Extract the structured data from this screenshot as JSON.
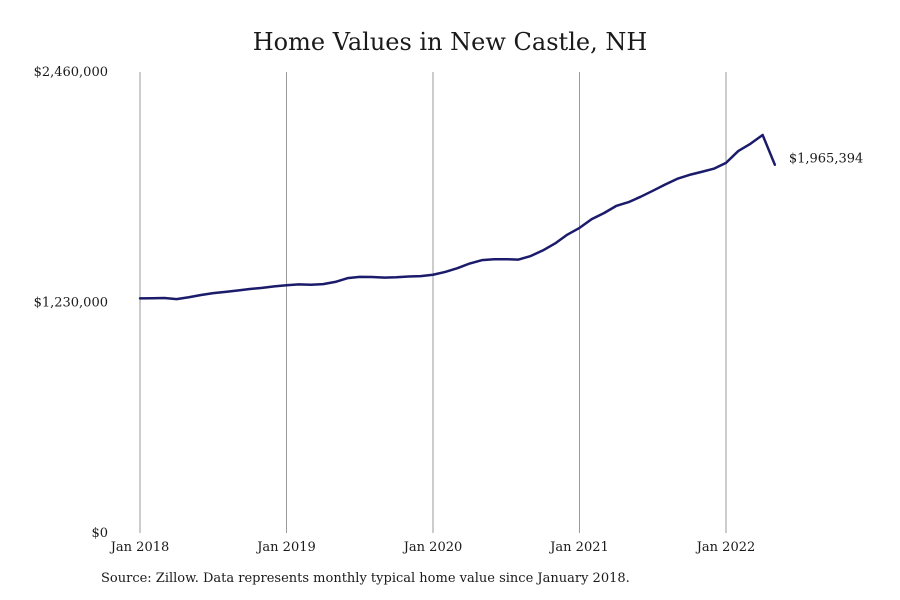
{
  "chart_data": {
    "type": "line",
    "title": "Home Values in New Castle, NH",
    "xlabel": "",
    "ylabel": "",
    "x_tick_labels": [
      "Jan 2018",
      "Jan 2019",
      "Jan 2020",
      "Jan 2021",
      "Jan 2022"
    ],
    "y_tick_labels": [
      "$2,460,000",
      "$1,230,000",
      "$0"
    ],
    "y_tick_values": [
      2460000,
      1230000,
      0
    ],
    "ylim": [
      0,
      2460000
    ],
    "x_start": "2018-01",
    "x_end_month_index": 52,
    "grid": {
      "vertical": true,
      "horizontal": false
    },
    "line_color": "#1b1b6b",
    "gridline_color": "#9a9a9a",
    "end_label": "$1,965,394",
    "series": [
      {
        "x": [
          "2018-01",
          "2018-02",
          "2018-03",
          "2018-04",
          "2018-05",
          "2018-06",
          "2018-07",
          "2018-08",
          "2018-09",
          "2018-10",
          "2018-11",
          "2018-12",
          "2019-01",
          "2019-02",
          "2019-03",
          "2019-04",
          "2019-05",
          "2019-06",
          "2019-07",
          "2019-08",
          "2019-09",
          "2019-10",
          "2019-11",
          "2019-12",
          "2020-01",
          "2020-02",
          "2020-03",
          "2020-04",
          "2020-05",
          "2020-06",
          "2020-07",
          "2020-08",
          "2020-09",
          "2020-10",
          "2020-11",
          "2020-12",
          "2021-01",
          "2021-02",
          "2021-03",
          "2021-04",
          "2021-05",
          "2021-06",
          "2021-07",
          "2021-08",
          "2021-09",
          "2021-10",
          "2021-11",
          "2021-12",
          "2022-01",
          "2022-02",
          "2022-03",
          "2022-04",
          "2022-05"
        ],
        "values": [
          1252000,
          1253000,
          1254000,
          1248000,
          1258000,
          1270000,
          1280000,
          1287000,
          1294000,
          1302000,
          1308000,
          1316000,
          1322000,
          1327000,
          1325000,
          1328000,
          1340000,
          1360000,
          1367000,
          1366000,
          1363000,
          1365000,
          1369000,
          1371000,
          1378000,
          1393000,
          1413000,
          1438000,
          1456000,
          1461000,
          1461000,
          1459000,
          1478000,
          1508000,
          1545000,
          1592000,
          1628000,
          1675000,
          1707000,
          1745000,
          1765000,
          1794000,
          1826000,
          1859000,
          1890000,
          1911000,
          1927000,
          1944000,
          1975000,
          2038000,
          2077000,
          2124000,
          1965394
        ]
      }
    ],
    "footnote": "Source: Zillow. Data represents monthly typical home value since January 2018."
  }
}
